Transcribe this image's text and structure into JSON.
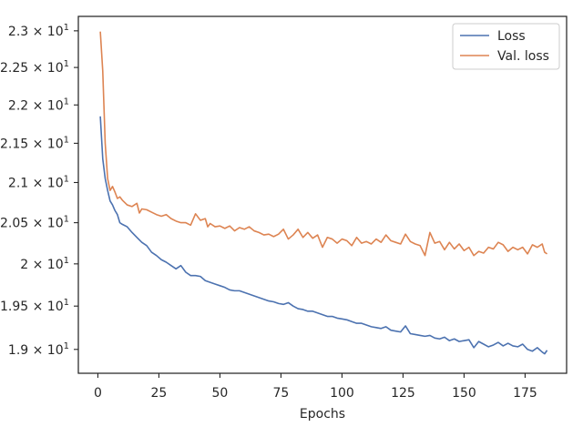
{
  "chart_data": {
    "type": "line",
    "title": "",
    "xlabel": "Epochs",
    "ylabel": "",
    "xlim": [
      -8,
      192
    ],
    "ylim": [
      18.73,
      23.2
    ],
    "yscale": "log",
    "grid": false,
    "legend_position": "top-right",
    "x_ticks": [
      {
        "value": 0,
        "label": "0"
      },
      {
        "value": 25,
        "label": "25"
      },
      {
        "value": 50,
        "label": "50"
      },
      {
        "value": 75,
        "label": "75"
      },
      {
        "value": 100,
        "label": "100"
      },
      {
        "value": 125,
        "label": "125"
      },
      {
        "value": 150,
        "label": "150"
      },
      {
        "value": 175,
        "label": "175"
      }
    ],
    "y_ticks": [
      {
        "value": 19.0,
        "mantissa": "1.9",
        "base": "10",
        "exp": "1"
      },
      {
        "value": 19.5,
        "mantissa": "1.95",
        "base": "10",
        "exp": "1"
      },
      {
        "value": 20.0,
        "mantissa": "2",
        "base": "10",
        "exp": "1"
      },
      {
        "value": 20.5,
        "mantissa": "2.05",
        "base": "10",
        "exp": "1"
      },
      {
        "value": 21.0,
        "mantissa": "2.1",
        "base": "10",
        "exp": "1"
      },
      {
        "value": 21.5,
        "mantissa": "2.15",
        "base": "10",
        "exp": "1"
      },
      {
        "value": 22.0,
        "mantissa": "2.2",
        "base": "10",
        "exp": "1"
      },
      {
        "value": 22.5,
        "mantissa": "2.25",
        "base": "10",
        "exp": "1"
      },
      {
        "value": 23.0,
        "mantissa": "2.3",
        "base": "10",
        "exp": "1"
      }
    ],
    "series": [
      {
        "name": "Loss",
        "color": "#4c72b0",
        "points": [
          [
            1,
            21.85
          ],
          [
            2,
            21.3
          ],
          [
            3,
            21.05
          ],
          [
            4,
            20.9
          ],
          [
            5,
            20.77
          ],
          [
            6,
            20.72
          ],
          [
            7,
            20.65
          ],
          [
            8,
            20.6
          ],
          [
            9,
            20.5
          ],
          [
            10,
            20.48
          ],
          [
            12,
            20.45
          ],
          [
            14,
            20.38
          ],
          [
            16,
            20.32
          ],
          [
            18,
            20.26
          ],
          [
            20,
            20.22
          ],
          [
            22,
            20.14
          ],
          [
            24,
            20.1
          ],
          [
            26,
            20.05
          ],
          [
            28,
            20.02
          ],
          [
            30,
            19.98
          ],
          [
            32,
            19.94
          ],
          [
            34,
            19.98
          ],
          [
            36,
            19.9
          ],
          [
            38,
            19.86
          ],
          [
            40,
            19.86
          ],
          [
            42,
            19.85
          ],
          [
            44,
            19.8
          ],
          [
            46,
            19.78
          ],
          [
            48,
            19.76
          ],
          [
            50,
            19.74
          ],
          [
            52,
            19.72
          ],
          [
            54,
            19.69
          ],
          [
            56,
            19.68
          ],
          [
            58,
            19.68
          ],
          [
            60,
            19.66
          ],
          [
            62,
            19.64
          ],
          [
            64,
            19.62
          ],
          [
            66,
            19.6
          ],
          [
            68,
            19.58
          ],
          [
            70,
            19.56
          ],
          [
            72,
            19.55
          ],
          [
            74,
            19.53
          ],
          [
            76,
            19.52
          ],
          [
            78,
            19.54
          ],
          [
            80,
            19.5
          ],
          [
            82,
            19.47
          ],
          [
            84,
            19.46
          ],
          [
            86,
            19.44
          ],
          [
            88,
            19.44
          ],
          [
            90,
            19.42
          ],
          [
            92,
            19.4
          ],
          [
            94,
            19.38
          ],
          [
            96,
            19.38
          ],
          [
            98,
            19.36
          ],
          [
            100,
            19.35
          ],
          [
            102,
            19.34
          ],
          [
            104,
            19.32
          ],
          [
            106,
            19.3
          ],
          [
            108,
            19.3
          ],
          [
            110,
            19.28
          ],
          [
            112,
            19.26
          ],
          [
            114,
            19.25
          ],
          [
            116,
            19.24
          ],
          [
            118,
            19.26
          ],
          [
            120,
            19.22
          ],
          [
            122,
            19.21
          ],
          [
            124,
            19.2
          ],
          [
            126,
            19.27
          ],
          [
            128,
            19.18
          ],
          [
            130,
            19.17
          ],
          [
            132,
            19.16
          ],
          [
            134,
            19.15
          ],
          [
            136,
            19.16
          ],
          [
            138,
            19.13
          ],
          [
            140,
            19.12
          ],
          [
            142,
            19.14
          ],
          [
            144,
            19.1
          ],
          [
            146,
            19.12
          ],
          [
            148,
            19.09
          ],
          [
            150,
            19.1
          ],
          [
            152,
            19.11
          ],
          [
            154,
            19.02
          ],
          [
            156,
            19.09
          ],
          [
            158,
            19.06
          ],
          [
            160,
            19.03
          ],
          [
            162,
            19.05
          ],
          [
            164,
            19.08
          ],
          [
            166,
            19.04
          ],
          [
            168,
            19.07
          ],
          [
            170,
            19.04
          ],
          [
            172,
            19.03
          ],
          [
            174,
            19.06
          ],
          [
            176,
            19.0
          ],
          [
            178,
            18.98
          ],
          [
            180,
            19.02
          ],
          [
            182,
            18.97
          ],
          [
            183,
            18.95
          ],
          [
            184,
            18.99
          ]
        ]
      },
      {
        "name": "Val. loss",
        "color": "#dd8452",
        "points": [
          [
            1,
            22.99
          ],
          [
            2,
            22.45
          ],
          [
            3,
            21.5
          ],
          [
            4,
            21.05
          ],
          [
            5,
            20.9
          ],
          [
            6,
            20.95
          ],
          [
            7,
            20.88
          ],
          [
            8,
            20.8
          ],
          [
            9,
            20.82
          ],
          [
            10,
            20.78
          ],
          [
            12,
            20.72
          ],
          [
            14,
            20.7
          ],
          [
            16,
            20.74
          ],
          [
            17,
            20.62
          ],
          [
            18,
            20.67
          ],
          [
            20,
            20.66
          ],
          [
            22,
            20.63
          ],
          [
            24,
            20.6
          ],
          [
            26,
            20.58
          ],
          [
            28,
            20.6
          ],
          [
            30,
            20.55
          ],
          [
            32,
            20.52
          ],
          [
            34,
            20.5
          ],
          [
            36,
            20.5
          ],
          [
            38,
            20.47
          ],
          [
            40,
            20.61
          ],
          [
            42,
            20.53
          ],
          [
            44,
            20.55
          ],
          [
            45,
            20.45
          ],
          [
            46,
            20.49
          ],
          [
            48,
            20.45
          ],
          [
            50,
            20.46
          ],
          [
            52,
            20.43
          ],
          [
            54,
            20.46
          ],
          [
            56,
            20.4
          ],
          [
            58,
            20.44
          ],
          [
            60,
            20.42
          ],
          [
            62,
            20.45
          ],
          [
            64,
            20.4
          ],
          [
            66,
            20.38
          ],
          [
            68,
            20.35
          ],
          [
            70,
            20.36
          ],
          [
            72,
            20.33
          ],
          [
            74,
            20.36
          ],
          [
            76,
            20.42
          ],
          [
            78,
            20.3
          ],
          [
            80,
            20.35
          ],
          [
            82,
            20.42
          ],
          [
            84,
            20.32
          ],
          [
            86,
            20.38
          ],
          [
            88,
            20.31
          ],
          [
            90,
            20.35
          ],
          [
            92,
            20.2
          ],
          [
            94,
            20.32
          ],
          [
            96,
            20.3
          ],
          [
            98,
            20.25
          ],
          [
            100,
            20.3
          ],
          [
            102,
            20.28
          ],
          [
            104,
            20.22
          ],
          [
            106,
            20.32
          ],
          [
            108,
            20.25
          ],
          [
            110,
            20.27
          ],
          [
            112,
            20.24
          ],
          [
            114,
            20.3
          ],
          [
            116,
            20.26
          ],
          [
            118,
            20.35
          ],
          [
            120,
            20.28
          ],
          [
            122,
            20.26
          ],
          [
            124,
            20.24
          ],
          [
            126,
            20.36
          ],
          [
            128,
            20.27
          ],
          [
            130,
            20.24
          ],
          [
            132,
            20.22
          ],
          [
            134,
            20.1
          ],
          [
            136,
            20.38
          ],
          [
            138,
            20.25
          ],
          [
            140,
            20.27
          ],
          [
            142,
            20.17
          ],
          [
            144,
            20.26
          ],
          [
            146,
            20.18
          ],
          [
            148,
            20.24
          ],
          [
            150,
            20.16
          ],
          [
            152,
            20.2
          ],
          [
            154,
            20.1
          ],
          [
            156,
            20.15
          ],
          [
            158,
            20.13
          ],
          [
            160,
            20.2
          ],
          [
            162,
            20.18
          ],
          [
            164,
            20.26
          ],
          [
            166,
            20.23
          ],
          [
            168,
            20.15
          ],
          [
            170,
            20.2
          ],
          [
            172,
            20.17
          ],
          [
            174,
            20.2
          ],
          [
            176,
            20.12
          ],
          [
            178,
            20.23
          ],
          [
            180,
            20.2
          ],
          [
            182,
            20.24
          ],
          [
            183,
            20.14
          ],
          [
            184,
            20.12
          ]
        ]
      }
    ]
  }
}
